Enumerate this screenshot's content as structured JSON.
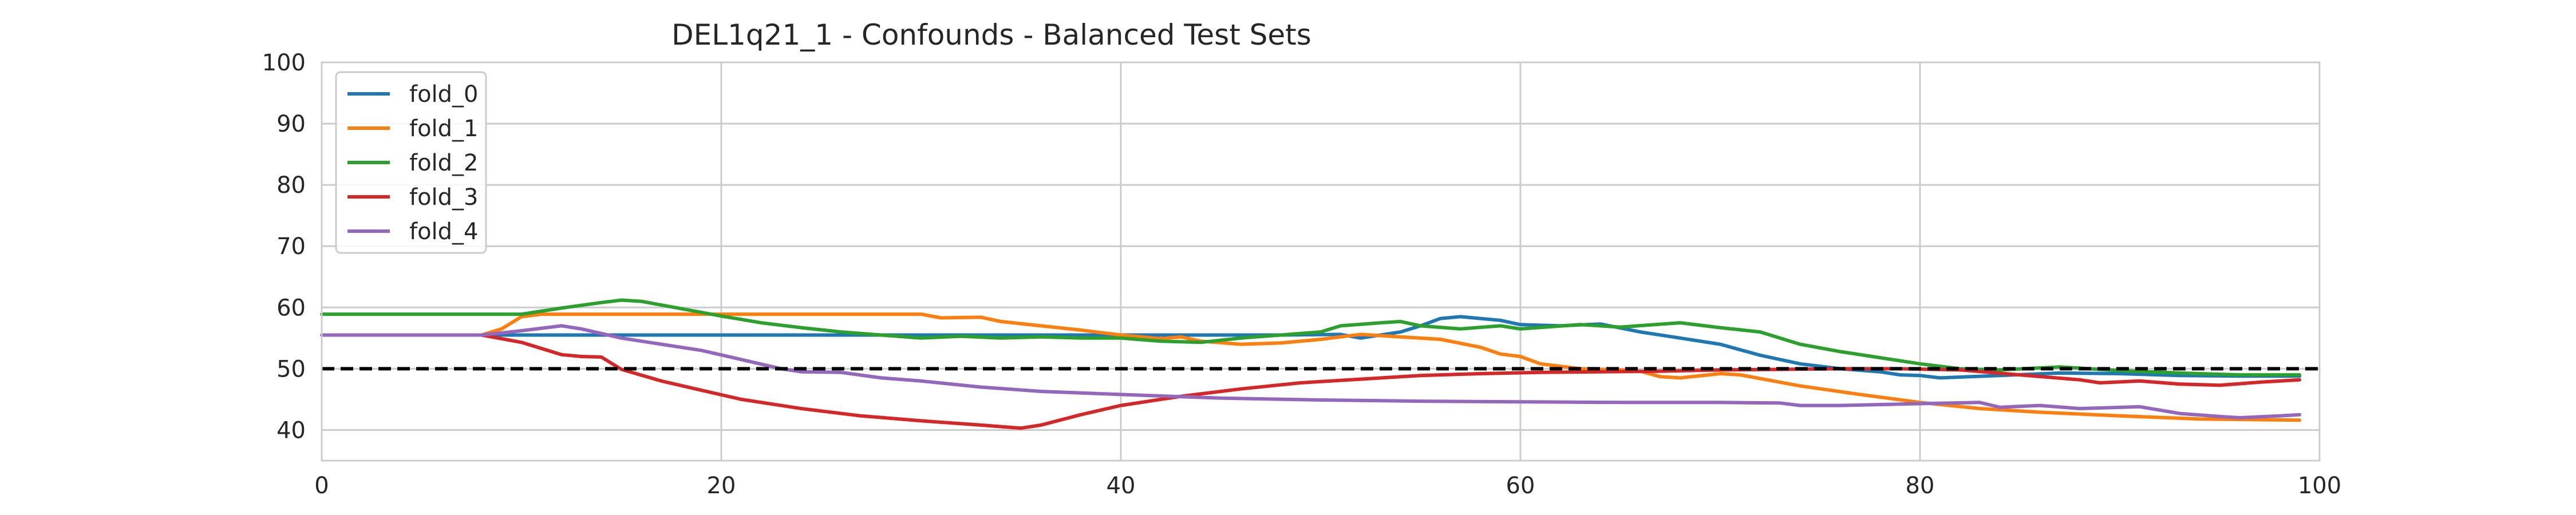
{
  "chart_data": {
    "type": "line",
    "title": "DEL1q21_1 - Confounds - Balanced Test Sets",
    "xlabel": "",
    "ylabel": "",
    "xlim": [
      0,
      100
    ],
    "ylim": [
      35,
      100
    ],
    "xticks": [
      0,
      20,
      40,
      60,
      80,
      100
    ],
    "yticks": [
      40,
      50,
      60,
      70,
      80,
      90,
      100
    ],
    "grid": true,
    "legend_position": "top-left",
    "reference_line": {
      "y": 50,
      "style": "dashed",
      "color": "#000000"
    },
    "series": [
      {
        "name": "fold_0",
        "color": "#1f77b4",
        "points": [
          [
            0,
            55.5
          ],
          [
            10,
            55.5
          ],
          [
            20,
            55.5
          ],
          [
            30,
            55.5
          ],
          [
            40,
            55.5
          ],
          [
            45,
            55.5
          ],
          [
            48,
            55.5
          ],
          [
            51,
            55.6
          ],
          [
            52,
            55.0
          ],
          [
            54,
            56.0
          ],
          [
            55,
            57.0
          ],
          [
            56,
            58.2
          ],
          [
            57,
            58.5
          ],
          [
            58,
            58.2
          ],
          [
            59,
            57.9
          ],
          [
            60,
            57.2
          ],
          [
            62,
            57.0
          ],
          [
            64,
            57.3
          ],
          [
            66,
            56.0
          ],
          [
            68,
            55.0
          ],
          [
            70,
            54.0
          ],
          [
            72,
            52.2
          ],
          [
            74,
            50.8
          ],
          [
            76,
            50.0
          ],
          [
            78,
            49.5
          ],
          [
            79,
            49.0
          ],
          [
            80,
            48.9
          ],
          [
            81,
            48.5
          ],
          [
            84,
            48.9
          ],
          [
            87,
            49.3
          ],
          [
            90,
            49.2
          ],
          [
            93,
            48.9
          ],
          [
            96,
            48.8
          ],
          [
            99,
            48.8
          ]
        ]
      },
      {
        "name": "fold_1",
        "color": "#ff7f0e",
        "points": [
          [
            0,
            55.5
          ],
          [
            8,
            55.5
          ],
          [
            9,
            56.5
          ],
          [
            10,
            58.5
          ],
          [
            11,
            58.9
          ],
          [
            15,
            58.9
          ],
          [
            20,
            58.9
          ],
          [
            25,
            58.9
          ],
          [
            30,
            58.9
          ],
          [
            31,
            58.3
          ],
          [
            33,
            58.4
          ],
          [
            34,
            57.7
          ],
          [
            36,
            57.0
          ],
          [
            38,
            56.3
          ],
          [
            40,
            55.5
          ],
          [
            42,
            54.9
          ],
          [
            43,
            55.2
          ],
          [
            44,
            54.5
          ],
          [
            46,
            54.0
          ],
          [
            48,
            54.2
          ],
          [
            50,
            54.8
          ],
          [
            52,
            55.6
          ],
          [
            54,
            55.2
          ],
          [
            56,
            54.8
          ],
          [
            58,
            53.5
          ],
          [
            59,
            52.4
          ],
          [
            60,
            52.0
          ],
          [
            61,
            50.8
          ],
          [
            63,
            50.0
          ],
          [
            65,
            49.8
          ],
          [
            66,
            49.6
          ],
          [
            67,
            48.7
          ],
          [
            68,
            48.5
          ],
          [
            70,
            49.2
          ],
          [
            71,
            49.0
          ],
          [
            74,
            47.2
          ],
          [
            77,
            45.8
          ],
          [
            80,
            44.5
          ],
          [
            83,
            43.5
          ],
          [
            86,
            42.9
          ],
          [
            90,
            42.3
          ],
          [
            94,
            41.8
          ],
          [
            99,
            41.6
          ]
        ]
      },
      {
        "name": "fold_2",
        "color": "#2ca02c",
        "points": [
          [
            0,
            58.9
          ],
          [
            5,
            58.9
          ],
          [
            10,
            58.9
          ],
          [
            12,
            59.9
          ],
          [
            14,
            60.8
          ],
          [
            15,
            61.2
          ],
          [
            16,
            61.0
          ],
          [
            18,
            59.8
          ],
          [
            20,
            58.6
          ],
          [
            22,
            57.5
          ],
          [
            24,
            56.7
          ],
          [
            26,
            56.0
          ],
          [
            28,
            55.5
          ],
          [
            30,
            55.0
          ],
          [
            32,
            55.3
          ],
          [
            34,
            55.0
          ],
          [
            36,
            55.2
          ],
          [
            38,
            55.0
          ],
          [
            40,
            55.0
          ],
          [
            42,
            54.5
          ],
          [
            44,
            54.3
          ],
          [
            46,
            55.0
          ],
          [
            48,
            55.5
          ],
          [
            50,
            56.0
          ],
          [
            51,
            57.0
          ],
          [
            53,
            57.5
          ],
          [
            54,
            57.7
          ],
          [
            55,
            57.0
          ],
          [
            57,
            56.5
          ],
          [
            59,
            57.0
          ],
          [
            60,
            56.5
          ],
          [
            63,
            57.2
          ],
          [
            65,
            56.8
          ],
          [
            68,
            57.5
          ],
          [
            70,
            56.7
          ],
          [
            72,
            56.0
          ],
          [
            74,
            54.0
          ],
          [
            76,
            52.8
          ],
          [
            78,
            51.8
          ],
          [
            80,
            50.8
          ],
          [
            82,
            50.0
          ],
          [
            84,
            49.8
          ],
          [
            87,
            50.3
          ],
          [
            90,
            49.7
          ],
          [
            93,
            49.3
          ],
          [
            96,
            49.0
          ],
          [
            99,
            49.0
          ]
        ]
      },
      {
        "name": "fold_3",
        "color": "#d62728",
        "points": [
          [
            0,
            55.5
          ],
          [
            5,
            55.5
          ],
          [
            8,
            55.5
          ],
          [
            10,
            54.3
          ],
          [
            12,
            52.3
          ],
          [
            13,
            52.0
          ],
          [
            14,
            51.9
          ],
          [
            15,
            49.9
          ],
          [
            17,
            48.0
          ],
          [
            19,
            46.5
          ],
          [
            21,
            45.0
          ],
          [
            24,
            43.5
          ],
          [
            27,
            42.3
          ],
          [
            30,
            41.5
          ],
          [
            33,
            40.8
          ],
          [
            35,
            40.3
          ],
          [
            36,
            40.8
          ],
          [
            38,
            42.5
          ],
          [
            40,
            44.0
          ],
          [
            43,
            45.5
          ],
          [
            46,
            46.7
          ],
          [
            49,
            47.7
          ],
          [
            52,
            48.3
          ],
          [
            55,
            48.9
          ],
          [
            58,
            49.2
          ],
          [
            61,
            49.4
          ],
          [
            64,
            49.5
          ],
          [
            67,
            49.6
          ],
          [
            70,
            49.8
          ],
          [
            73,
            49.9
          ],
          [
            76,
            50.0
          ],
          [
            79,
            50.0
          ],
          [
            82,
            49.8
          ],
          [
            85,
            49.0
          ],
          [
            88,
            48.2
          ],
          [
            89,
            47.7
          ],
          [
            91,
            48.0
          ],
          [
            93,
            47.5
          ],
          [
            95,
            47.3
          ],
          [
            97,
            47.8
          ],
          [
            99,
            48.2
          ]
        ]
      },
      {
        "name": "fold_4",
        "color": "#9467bd",
        "points": [
          [
            0,
            55.5
          ],
          [
            5,
            55.5
          ],
          [
            8,
            55.5
          ],
          [
            10,
            56.2
          ],
          [
            12,
            57.0
          ],
          [
            13,
            56.5
          ],
          [
            15,
            55.0
          ],
          [
            17,
            54.0
          ],
          [
            19,
            53.0
          ],
          [
            21,
            51.5
          ],
          [
            23,
            50.0
          ],
          [
            24,
            49.5
          ],
          [
            26,
            49.4
          ],
          [
            28,
            48.5
          ],
          [
            30,
            48.0
          ],
          [
            33,
            47.0
          ],
          [
            36,
            46.3
          ],
          [
            40,
            45.8
          ],
          [
            45,
            45.2
          ],
          [
            50,
            44.9
          ],
          [
            55,
            44.7
          ],
          [
            60,
            44.6
          ],
          [
            65,
            44.5
          ],
          [
            70,
            44.5
          ],
          [
            73,
            44.4
          ],
          [
            74,
            44.0
          ],
          [
            76,
            44.0
          ],
          [
            80,
            44.3
          ],
          [
            83,
            44.5
          ],
          [
            84,
            43.7
          ],
          [
            86,
            44.0
          ],
          [
            88,
            43.5
          ],
          [
            91,
            43.8
          ],
          [
            93,
            42.7
          ],
          [
            95,
            42.2
          ],
          [
            96,
            42.0
          ],
          [
            98,
            42.3
          ],
          [
            99,
            42.5
          ]
        ]
      }
    ]
  }
}
